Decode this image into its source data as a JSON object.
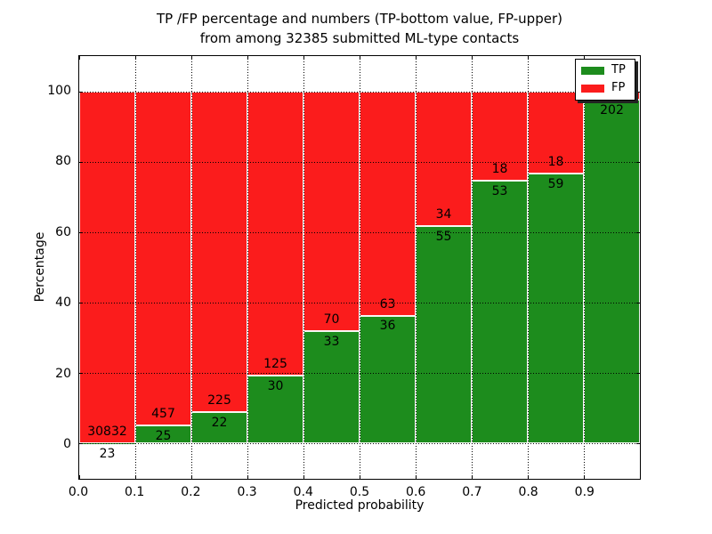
{
  "figure": {
    "title_line1": "TP /FP percentage and numbers (TP-bottom value, FP-upper)",
    "title_line2": "from among 32385 submitted ML-type contacts",
    "xlabel": "Predicted probability",
    "ylabel": "Percentage"
  },
  "legend": {
    "items": [
      {
        "label": "TP",
        "color": "#1d8c1d"
      },
      {
        "label": "FP",
        "color": "#fb1c1c"
      }
    ]
  },
  "chart_data": {
    "type": "bar",
    "stacked": true,
    "title": "TP /FP percentage and numbers (TP-bottom value, FP-upper) from among 32385 submitted ML-type contacts",
    "xlabel": "Predicted probability",
    "ylabel": "Percentage",
    "total_submitted": 32385,
    "grid": "dotted",
    "legend_position": "upper right",
    "xlim": [
      0.0,
      1.0
    ],
    "ylim": [
      -10,
      110
    ],
    "bin_width": 0.1,
    "xticks": [
      "0.0",
      "0.1",
      "0.2",
      "0.3",
      "0.4",
      "0.5",
      "0.6",
      "0.7",
      "0.8",
      "0.9"
    ],
    "yticks": [
      "0",
      "20",
      "40",
      "60",
      "80",
      "100"
    ],
    "bin_starts": [
      0.0,
      0.1,
      0.2,
      0.3,
      0.4,
      0.5,
      0.6,
      0.7,
      0.8,
      0.9
    ],
    "series": [
      {
        "name": "TP",
        "color": "#1d8c1d",
        "counts": [
          23,
          25,
          22,
          30,
          33,
          36,
          55,
          53,
          59,
          202
        ],
        "label_visible": [
          true,
          true,
          true,
          true,
          true,
          true,
          true,
          true,
          true,
          true
        ]
      },
      {
        "name": "FP",
        "color": "#fb1c1c",
        "counts": [
          30832,
          457,
          225,
          125,
          70,
          63,
          34,
          18,
          18,
          null
        ],
        "label_visible": [
          true,
          true,
          true,
          true,
          true,
          true,
          true,
          true,
          true,
          false
        ]
      }
    ],
    "tp_percent": [
      0.07,
      5.19,
      8.91,
      19.35,
      32.04,
      36.36,
      61.8,
      74.65,
      76.62,
      97.59
    ]
  }
}
